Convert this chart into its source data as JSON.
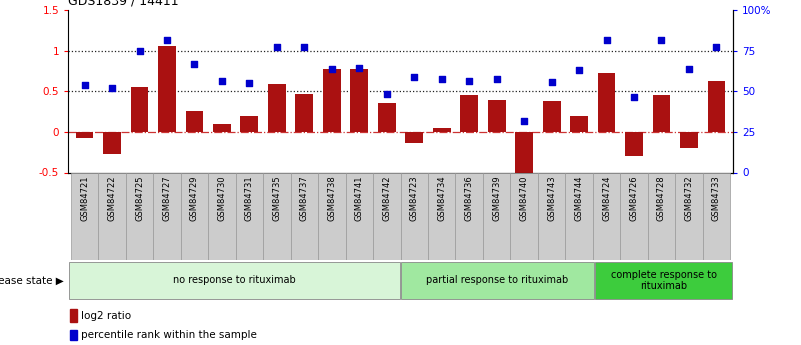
{
  "title": "GDS1839 / 14411",
  "samples": [
    "GSM84721",
    "GSM84722",
    "GSM84725",
    "GSM84727",
    "GSM84729",
    "GSM84730",
    "GSM84731",
    "GSM84735",
    "GSM84737",
    "GSM84738",
    "GSM84741",
    "GSM84742",
    "GSM84723",
    "GSM84734",
    "GSM84736",
    "GSM84739",
    "GSM84740",
    "GSM84743",
    "GSM84744",
    "GSM84724",
    "GSM84726",
    "GSM84728",
    "GSM84732",
    "GSM84733"
  ],
  "log2_ratio": [
    -0.07,
    -0.27,
    0.55,
    1.06,
    0.26,
    0.1,
    0.2,
    0.59,
    0.47,
    0.78,
    0.78,
    0.36,
    -0.13,
    0.05,
    0.46,
    0.4,
    -0.55,
    0.38,
    0.2,
    0.73,
    -0.3,
    0.46,
    -0.2,
    0.63
  ],
  "percentile": [
    0.58,
    0.54,
    1.0,
    1.14,
    0.84,
    0.63,
    0.6,
    1.05,
    1.05,
    0.78,
    0.79,
    0.47,
    0.68,
    0.65,
    0.63,
    0.65,
    0.13,
    0.62,
    0.77,
    1.14,
    0.43,
    1.14,
    0.78,
    1.05
  ],
  "group_labels": [
    "no response to rituximab",
    "partial response to rituximab",
    "complete response to\nrituximab"
  ],
  "group_counts": [
    12,
    7,
    5
  ],
  "group_colors": [
    "#d8f5d8",
    "#a0e8a0",
    "#3dcc3d"
  ],
  "bar_color": "#aa1111",
  "dot_color": "#0000cc",
  "ylim_left": [
    -0.5,
    1.5
  ],
  "hlines_dotted": [
    0.5,
    1.0
  ],
  "zero_line_color": "#cc3333",
  "dotted_line_color": "#222222",
  "background_color": "#ffffff",
  "xtick_bg": "#cccccc",
  "xtick_border": "#999999"
}
